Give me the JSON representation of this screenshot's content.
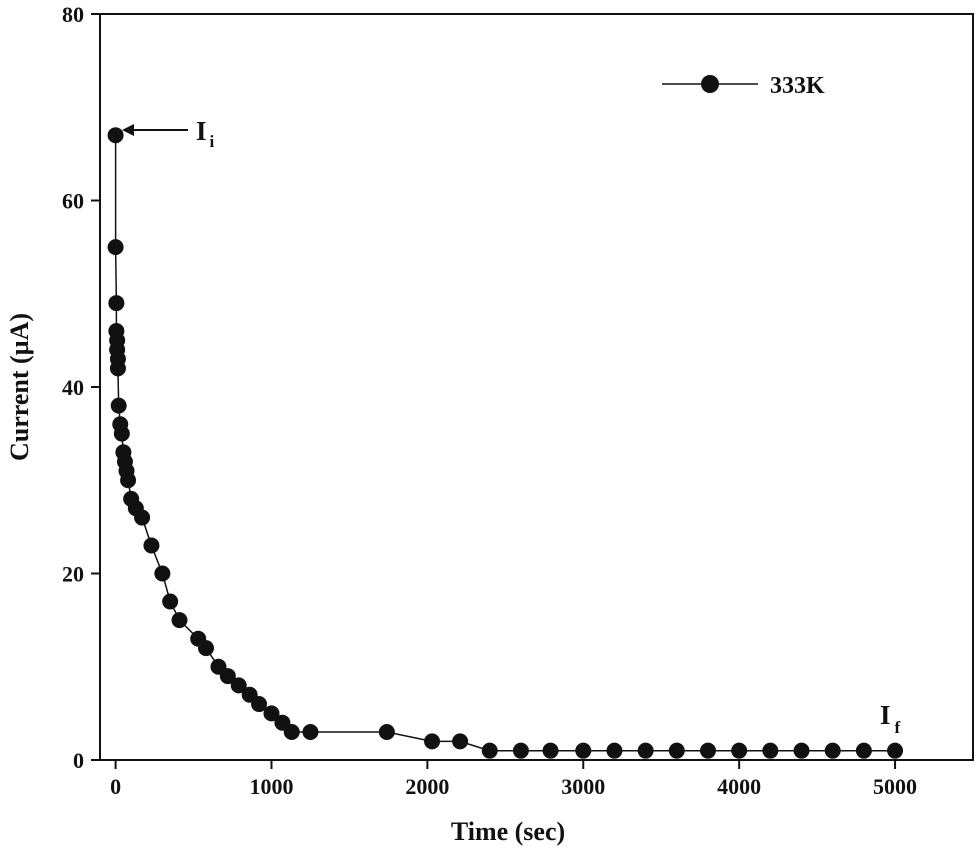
{
  "chart_data": {
    "type": "line",
    "xlabel": "Time (sec)",
    "ylabel": "Current (µA)",
    "xlim": [
      -100,
      5500
    ],
    "ylim": [
      0,
      80
    ],
    "xticks": [
      0,
      1000,
      2000,
      3000,
      4000,
      5000
    ],
    "yticks": [
      0,
      20,
      40,
      60,
      80
    ],
    "grid": false,
    "legend_position": "top-right",
    "series": [
      {
        "name": "333K",
        "color": "#111111",
        "marker": "filled-circle",
        "x": [
          0,
          0,
          5,
          5,
          10,
          10,
          15,
          15,
          20,
          30,
          40,
          50,
          60,
          70,
          80,
          100,
          130,
          170,
          230,
          300,
          350,
          410,
          530,
          580,
          660,
          720,
          790,
          860,
          920,
          1000,
          1070,
          1130,
          1250,
          1740,
          2030,
          2210,
          2400,
          2600,
          2790,
          3000,
          3200,
          3400,
          3600,
          3800,
          4000,
          4200,
          4400,
          4600,
          4800,
          5000
        ],
        "y": [
          67,
          55,
          49,
          46,
          45,
          44,
          43,
          42,
          38,
          36,
          35,
          33,
          32,
          31,
          30,
          28,
          27,
          26,
          23,
          20,
          17,
          15,
          13,
          12,
          10,
          9,
          8,
          7,
          6,
          5,
          4,
          3,
          3,
          3,
          2,
          2,
          1,
          1,
          1,
          1,
          1,
          1,
          1,
          1,
          1,
          1,
          1,
          1,
          1,
          1
        ]
      }
    ],
    "annotations": [
      {
        "id": "ii",
        "text": "I",
        "sub": "i",
        "x": 0,
        "y": 67
      },
      {
        "id": "if",
        "text": "I",
        "sub": "f",
        "x": 5000,
        "y": 1
      }
    ]
  }
}
